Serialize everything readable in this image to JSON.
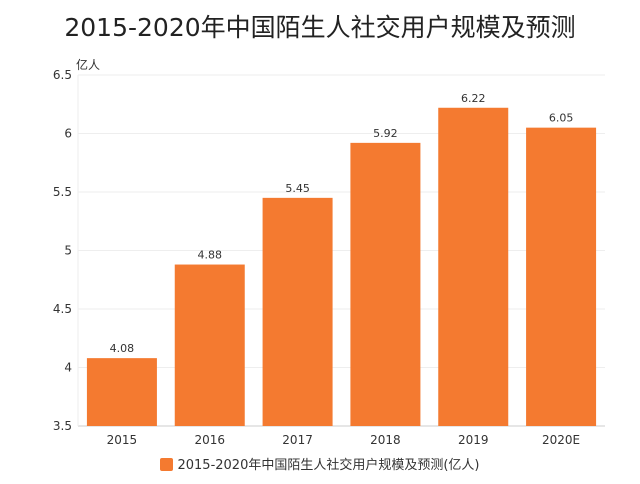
{
  "chart_data": {
    "type": "bar",
    "title": "2015-2020年中国陌生人社交用户规模及预测",
    "ylabel": "亿人",
    "xlabel": "",
    "categories": [
      "2015",
      "2016",
      "2017",
      "2018",
      "2019",
      "2020E"
    ],
    "series": [
      {
        "name": "2015-2020年中国陌生人社交用户规模及预测(亿人)",
        "values": [
          4.08,
          4.88,
          5.45,
          5.92,
          6.22,
          6.05
        ],
        "color": "#f47a30"
      }
    ],
    "data_labels": [
      "4.08",
      "4.88",
      "5.45",
      "5.92",
      "6.22",
      "6.05"
    ],
    "ylim": [
      3.5,
      6.5
    ],
    "yticks": [
      "3.5",
      "4",
      "4.5",
      "5",
      "5.5",
      "6",
      "6.5"
    ],
    "grid": true,
    "legend": "bottom"
  }
}
